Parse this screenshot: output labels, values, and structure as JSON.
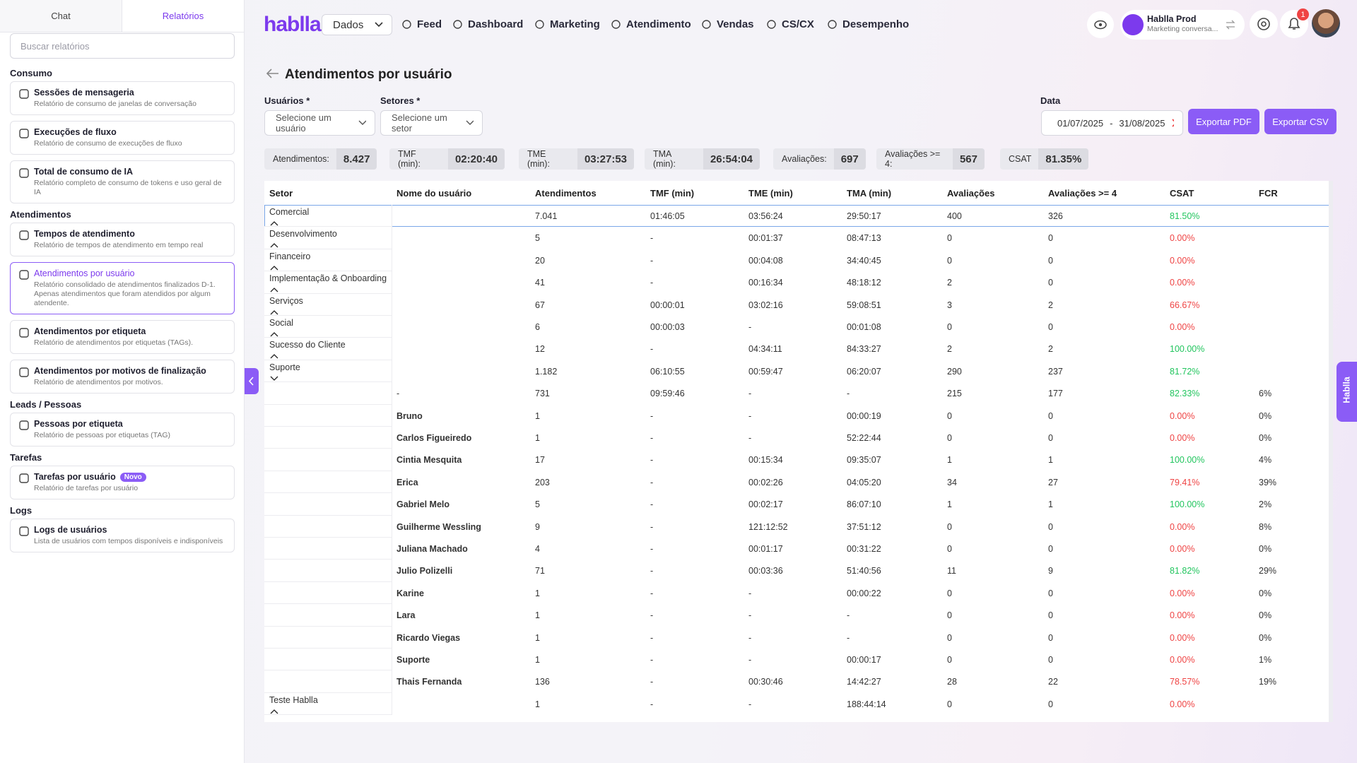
{
  "sidebar": {
    "tabs": [
      "Chat",
      "Relatórios"
    ],
    "search_placeholder": "Buscar relatórios",
    "sections": [
      {
        "title": "Consumo",
        "items": [
          {
            "title": "Sessões de mensageria",
            "desc": "Relatório de consumo de janelas de conversação"
          },
          {
            "title": "Execuções de fluxo",
            "desc": "Relatório de consumo de execuções de fluxo"
          },
          {
            "title": "Total de consumo de IA",
            "desc": "Relatório completo de consumo de tokens e uso geral de IA"
          }
        ]
      },
      {
        "title": "Atendimentos",
        "items": [
          {
            "title": "Tempos de atendimento",
            "desc": "Relatório de tempos de atendimento em tempo real"
          },
          {
            "title": "Atendimentos por usuário",
            "desc": "Relatório consolidado de atendimentos finalizados D-1. Apenas atendimentos que foram atendidos por algum atendente."
          },
          {
            "title": "Atendimentos por etiqueta",
            "desc": "Relatório de atendimentos por etiquetas (TAGs)."
          },
          {
            "title": "Atendimentos por motivos de finalização",
            "desc": "Relatório de atendimentos por motivos."
          }
        ]
      },
      {
        "title": "Leads / Pessoas",
        "items": [
          {
            "title": "Pessoas por etiqueta",
            "desc": "Relatório de pessoas por etiquetas (TAG)"
          }
        ]
      },
      {
        "title": "Tarefas",
        "items": [
          {
            "title": "Tarefas por usuário",
            "badge": "Novo",
            "desc": "Relatório de tarefas por usuário"
          }
        ]
      },
      {
        "title": "Logs",
        "items": [
          {
            "title": "Logs de usuários",
            "desc": "Lista de usuários com tempos disponíveis e indisponíveis"
          }
        ]
      }
    ]
  },
  "nav": {
    "logo": "hablla",
    "select": "Dados",
    "items": [
      "Feed",
      "Dashboard",
      "Marketing",
      "Atendimento",
      "Vendas",
      "CS/CX",
      "Desempenho"
    ],
    "account_name": "Hablla Prod",
    "account_sub": "Marketing conversa...",
    "badge": "1"
  },
  "page": {
    "title": "Atendimentos por usuário",
    "filters": {
      "users_label": "Usuários *",
      "users_placeholder": "Selecione um usuário",
      "sectors_label": "Setores *",
      "sectors_placeholder": "Selecione um setor",
      "date_label": "Data",
      "date_from": "01/07/2025",
      "date_sep": "-",
      "date_to": "31/08/2025"
    },
    "buttons": [
      "Exportar PDF",
      "Exportar CSV"
    ],
    "stats": [
      {
        "label": "Atendimentos:",
        "value": "8.427"
      },
      {
        "label": "TMF (min):",
        "value": "02:20:40"
      },
      {
        "label": "TME (min):",
        "value": "03:27:53"
      },
      {
        "label": "TMA (min):",
        "value": "26:54:04"
      },
      {
        "label": "Avaliações:",
        "value": "697"
      },
      {
        "label": "Avaliações >= 4:",
        "value": "567"
      },
      {
        "label": "CSAT",
        "value": "81.35%"
      }
    ],
    "side_tab": "Hablla"
  },
  "table": {
    "headers": [
      "Setor",
      "Nome do usuário",
      "Atendimentos",
      "TMF (min)",
      "TME (min)",
      "TMA (min)",
      "Avaliações",
      "Avaliações >= 4",
      "CSAT",
      "FCR"
    ],
    "rows": [
      [
        "Comercial",
        null,
        "7.041",
        "01:46:05",
        "03:56:24",
        "29:50:17",
        "400",
        "326",
        "81.50%",
        null
      ],
      [
        "Desenvolvimento",
        null,
        "5",
        "-",
        "00:01:37",
        "08:47:13",
        "0",
        "0",
        "0.00%",
        null
      ],
      [
        "Financeiro",
        null,
        "20",
        "-",
        "00:04:08",
        "34:40:45",
        "0",
        "0",
        "0.00%",
        null
      ],
      [
        "Implementação & Onboarding",
        null,
        "41",
        "-",
        "00:16:34",
        "48:18:12",
        "2",
        "0",
        "0.00%",
        null
      ],
      [
        "Serviços",
        null,
        "67",
        "00:00:01",
        "03:02:16",
        "59:08:51",
        "3",
        "2",
        "66.67%",
        null
      ],
      [
        "Social",
        null,
        "6",
        "00:00:03",
        "-",
        "00:01:08",
        "0",
        "0",
        "0.00%",
        null
      ],
      [
        "Sucesso do Cliente",
        null,
        "12",
        "-",
        "04:34:11",
        "84:33:27",
        "2",
        "2",
        "100.00%",
        null
      ],
      [
        "Suporte",
        null,
        "1.182",
        "06:10:55",
        "00:59:47",
        "06:20:07",
        "290",
        "237",
        "81.72%",
        null
      ],
      [
        null,
        "-",
        "731",
        "09:59:46",
        "-",
        "-",
        "215",
        "177",
        "82.33%",
        "6%"
      ],
      [
        null,
        "Bruno",
        "1",
        "-",
        "-",
        "00:00:19",
        "0",
        "0",
        "0.00%",
        "0%"
      ],
      [
        null,
        "Carlos Figueiredo",
        "1",
        "-",
        "-",
        "52:22:44",
        "0",
        "0",
        "0.00%",
        "0%"
      ],
      [
        null,
        "Cintia Mesquita",
        "17",
        "-",
        "00:15:34",
        "09:35:07",
        "1",
        "1",
        "100.00%",
        "4%"
      ],
      [
        null,
        "Erica",
        "203",
        "-",
        "00:02:26",
        "04:05:20",
        "34",
        "27",
        "79.41%",
        "39%"
      ],
      [
        null,
        "Gabriel Melo",
        "5",
        "-",
        "00:02:17",
        "86:07:10",
        "1",
        "1",
        "100.00%",
        "2%"
      ],
      [
        null,
        "Guilherme Wessling",
        "9",
        "-",
        "121:12:52",
        "37:51:12",
        "0",
        "0",
        "0.00%",
        "8%"
      ],
      [
        null,
        "Juliana Machado",
        "4",
        "-",
        "00:01:17",
        "00:31:22",
        "0",
        "0",
        "0.00%",
        "0%"
      ],
      [
        null,
        "Julio Polizelli",
        "71",
        "-",
        "00:03:36",
        "51:40:56",
        "11",
        "9",
        "81.82%",
        "29%"
      ],
      [
        null,
        "Karine",
        "1",
        "-",
        "-",
        "00:00:22",
        "0",
        "0",
        "0.00%",
        "0%"
      ],
      [
        null,
        "Lara",
        "1",
        "-",
        "-",
        "-",
        "0",
        "0",
        "0.00%",
        "0%"
      ],
      [
        null,
        "Ricardo Viegas",
        "1",
        "-",
        "-",
        "-",
        "0",
        "0",
        "0.00%",
        "0%"
      ],
      [
        null,
        "Suporte",
        "1",
        "-",
        "-",
        "00:00:17",
        "0",
        "0",
        "0.00%",
        "1%"
      ],
      [
        null,
        "Thais Fernanda",
        "136",
        "-",
        "00:30:46",
        "14:42:27",
        "28",
        "22",
        "78.57%",
        "19%"
      ],
      [
        "Teste Hablla",
        null,
        "1",
        "-",
        "-",
        "188:44:14",
        "0",
        "0",
        "0.00%",
        null
      ]
    ]
  }
}
